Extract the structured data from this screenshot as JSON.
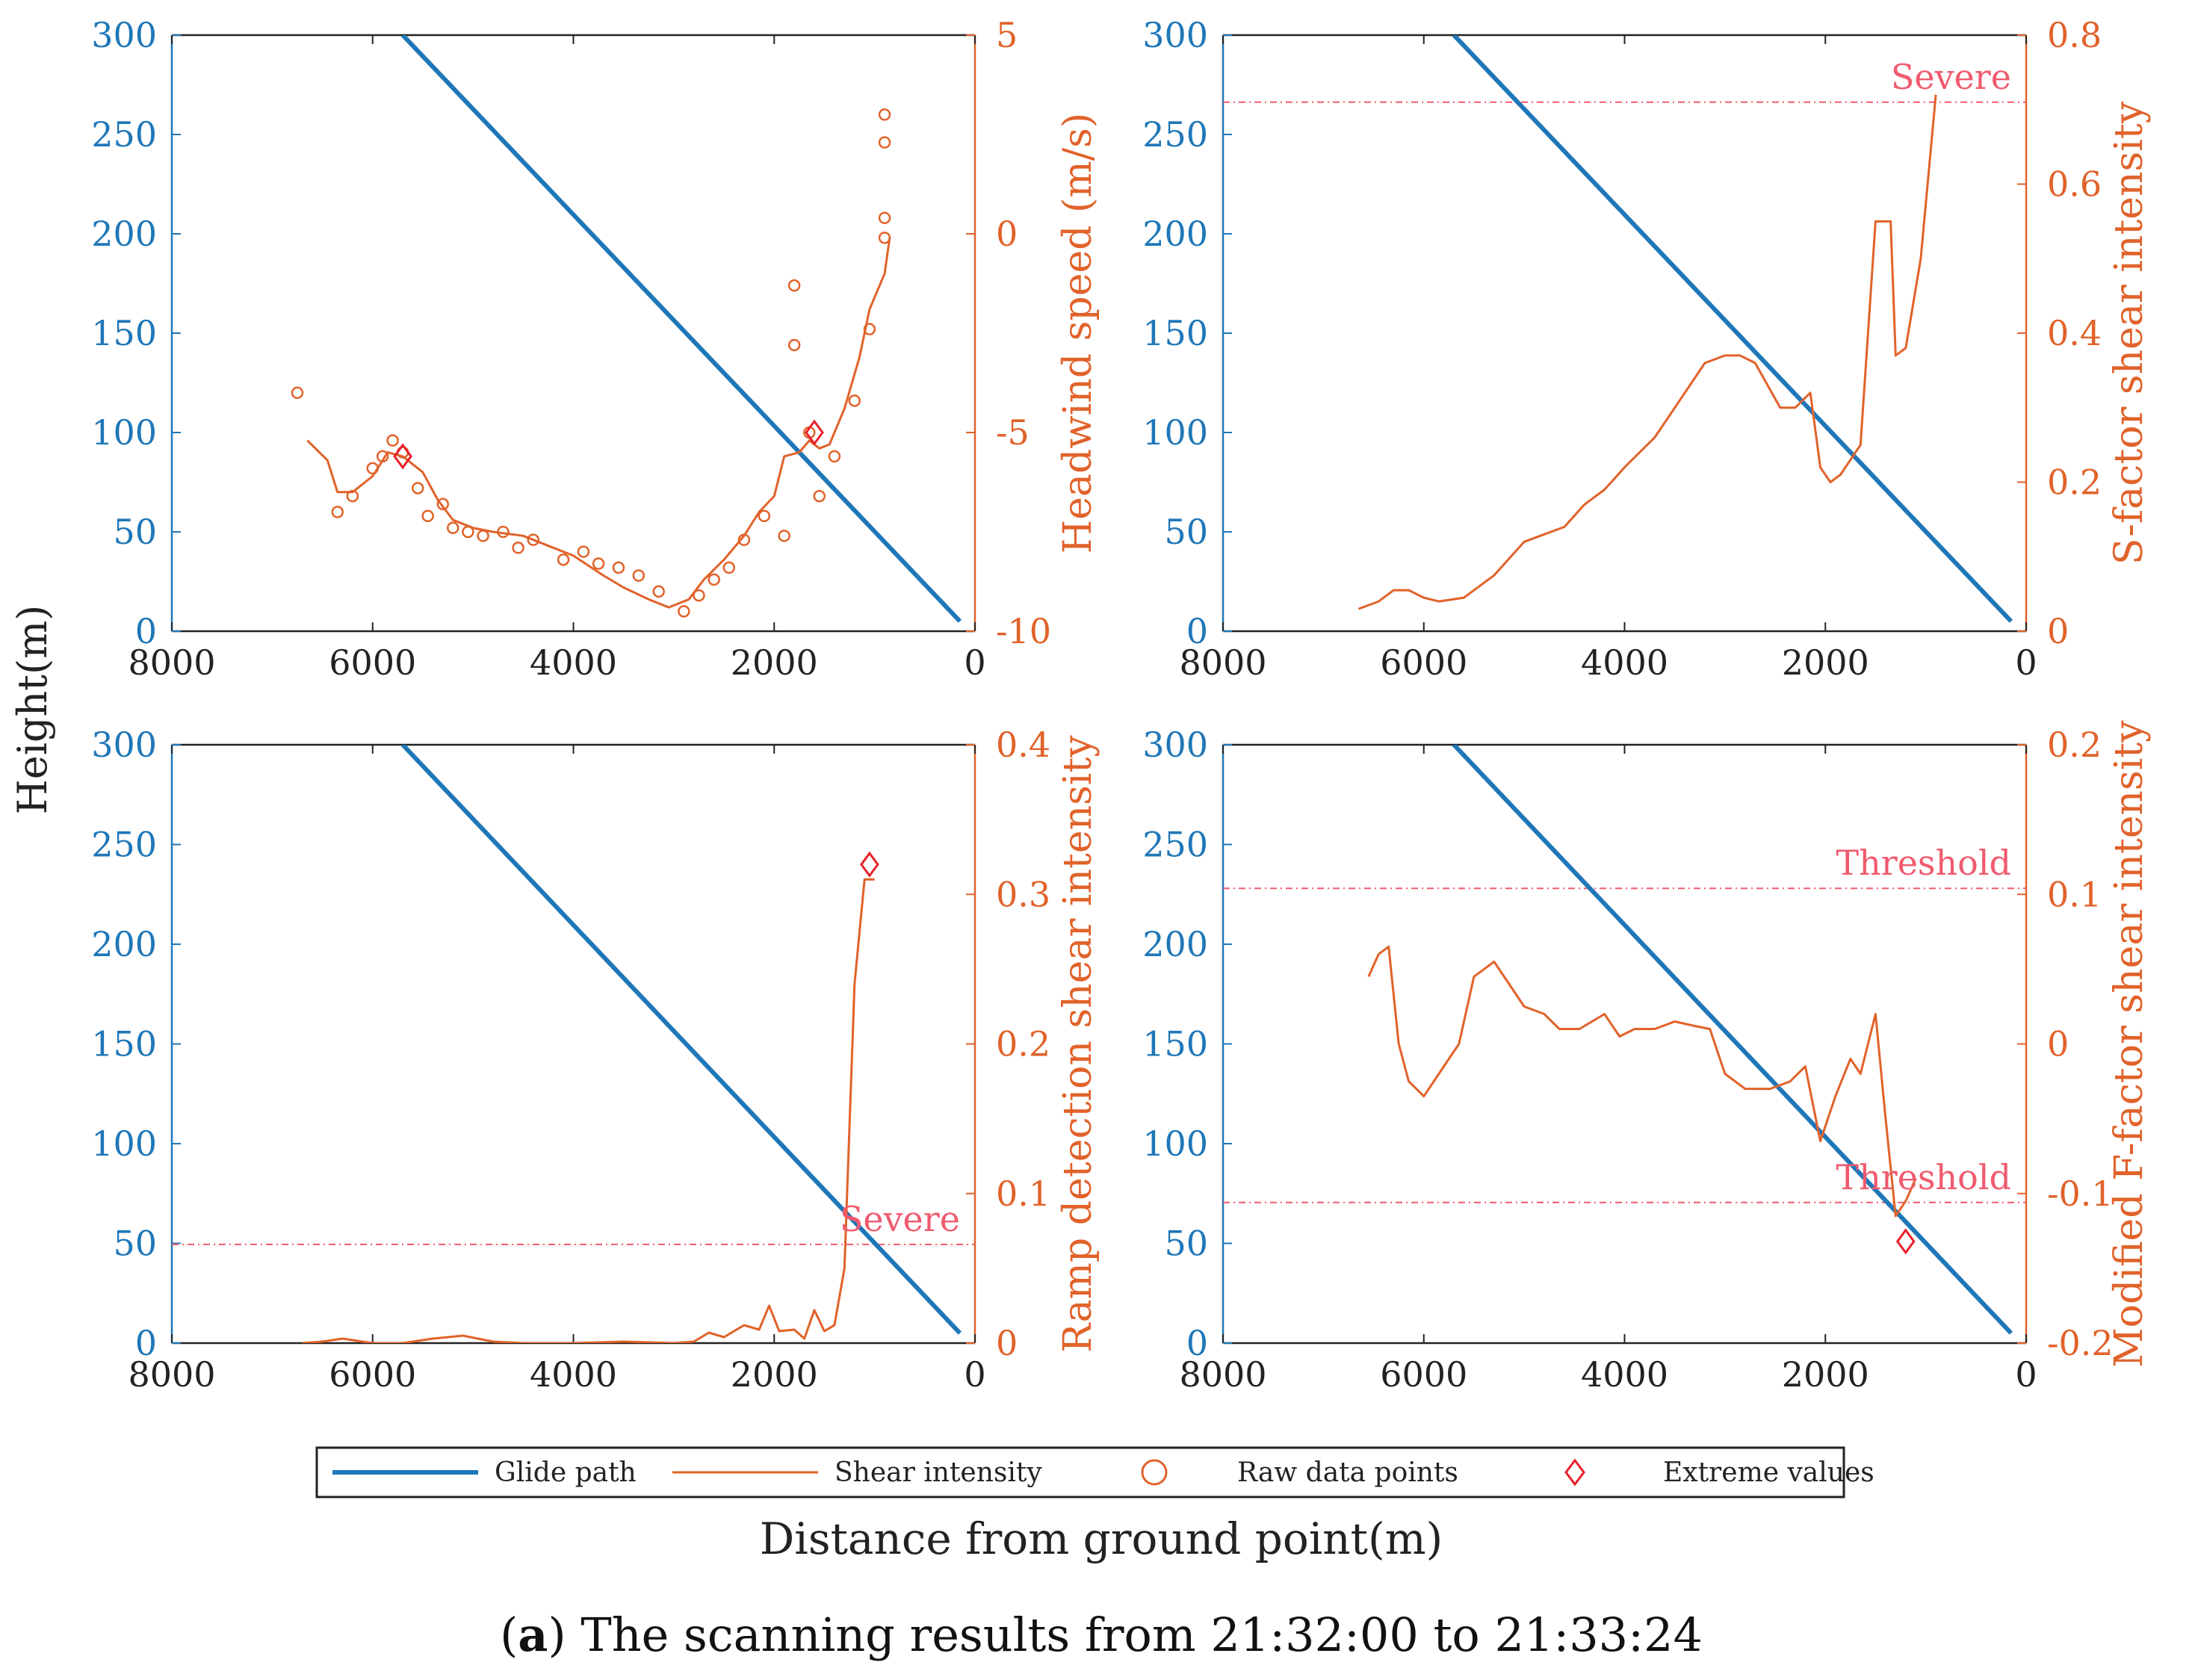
{
  "caption": {
    "prefix": "(",
    "bold": "a",
    "suffix": ") The scanning results from 21:32:00 to 21:33:24"
  },
  "shared_ylabel": "Height(m)",
  "shared_xlabel": "Distance from ground point(m)",
  "legend": {
    "glide_path": "Glide path",
    "shear_intensity": "Shear intensity",
    "raw_points": "Raw data points",
    "extreme_values": "Extreme values"
  },
  "colors": {
    "glide": "#1f77b8",
    "shear": "#e1622a",
    "extreme": "#e8202a",
    "threshold": "#f05a6e"
  },
  "chart_data": [
    {
      "type": "line",
      "ylabel_right": "Headwind speed (m/s)",
      "x_ticks": [
        "8000",
        "6000",
        "4000",
        "2000",
        "0"
      ],
      "xlim": [
        8000,
        0
      ],
      "y_left_ticks": [
        "300",
        "250",
        "200",
        "150",
        "100",
        "50",
        "0"
      ],
      "ylim_left": [
        0,
        300
      ],
      "y_right_ticks": [
        "5",
        "0",
        "-5",
        "-10"
      ],
      "ylim_right": [
        -10,
        5
      ],
      "glide_path": [
        [
          5700,
          300
        ],
        [
          150,
          5
        ]
      ],
      "shear_line": [
        [
          6650,
          -5.2
        ],
        [
          6450,
          -5.7
        ],
        [
          6350,
          -6.5
        ],
        [
          6200,
          -6.5
        ],
        [
          6000,
          -6.1
        ],
        [
          5850,
          -5.5
        ],
        [
          5700,
          -5.6
        ],
        [
          5500,
          -6.0
        ],
        [
          5350,
          -6.7
        ],
        [
          5200,
          -7.2
        ],
        [
          5000,
          -7.4
        ],
        [
          4800,
          -7.5
        ],
        [
          4500,
          -7.6
        ],
        [
          4200,
          -7.9
        ],
        [
          4000,
          -8.1
        ],
        [
          3700,
          -8.6
        ],
        [
          3500,
          -8.9
        ],
        [
          3250,
          -9.2
        ],
        [
          3050,
          -9.4
        ],
        [
          2850,
          -9.2
        ],
        [
          2700,
          -8.7
        ],
        [
          2500,
          -8.2
        ],
        [
          2300,
          -7.6
        ],
        [
          2150,
          -7.0
        ],
        [
          2000,
          -6.6
        ],
        [
          1900,
          -5.6
        ],
        [
          1750,
          -5.5
        ],
        [
          1650,
          -5.2
        ],
        [
          1550,
          -5.4
        ],
        [
          1450,
          -5.3
        ],
        [
          1300,
          -4.4
        ],
        [
          1150,
          -3.1
        ],
        [
          1050,
          -1.9
        ],
        [
          900,
          -1.0
        ],
        [
          850,
          -0.1
        ]
      ],
      "raw_points": [
        [
          6750,
          -4.0
        ],
        [
          5800,
          -5.2
        ],
        [
          5700,
          -5.5
        ],
        [
          6000,
          -5.9
        ],
        [
          6200,
          -6.6
        ],
        [
          6350,
          -7.0
        ],
        [
          5900,
          -5.6
        ],
        [
          5550,
          -6.4
        ],
        [
          5450,
          -7.1
        ],
        [
          5300,
          -6.8
        ],
        [
          5200,
          -7.4
        ],
        [
          5050,
          -7.5
        ],
        [
          4900,
          -7.6
        ],
        [
          4700,
          -7.5
        ],
        [
          4550,
          -7.9
        ],
        [
          4400,
          -7.7
        ],
        [
          4100,
          -8.2
        ],
        [
          3900,
          -8.0
        ],
        [
          3750,
          -8.3
        ],
        [
          3550,
          -8.4
        ],
        [
          3350,
          -8.6
        ],
        [
          3150,
          -9.0
        ],
        [
          2900,
          -9.5
        ],
        [
          2750,
          -9.1
        ],
        [
          2600,
          -8.7
        ],
        [
          2450,
          -8.4
        ],
        [
          2300,
          -7.7
        ],
        [
          2100,
          -7.1
        ],
        [
          1900,
          -7.6
        ],
        [
          1800,
          -2.8
        ],
        [
          1800,
          -1.3
        ],
        [
          1650,
          -5.0
        ],
        [
          1550,
          -6.6
        ],
        [
          1400,
          -5.6
        ],
        [
          1200,
          -4.2
        ],
        [
          1050,
          -2.4
        ],
        [
          900,
          -0.1
        ],
        [
          900,
          0.4
        ],
        [
          900,
          2.3
        ],
        [
          900,
          3.0
        ]
      ],
      "extreme_points": [
        [
          5700,
          -5.6
        ],
        [
          1600,
          -5.0
        ]
      ]
    },
    {
      "type": "line",
      "ylabel_right": "S-factor shear intensity",
      "x_ticks": [
        "8000",
        "6000",
        "4000",
        "2000",
        "0"
      ],
      "xlim": [
        8000,
        0
      ],
      "y_left_ticks": [
        "300",
        "250",
        "200",
        "150",
        "100",
        "50",
        "0"
      ],
      "ylim_left": [
        0,
        300
      ],
      "y_right_ticks": [
        "0.8",
        "0.6",
        "0.4",
        "0.2",
        "0"
      ],
      "ylim_right": [
        0,
        0.8
      ],
      "glide_path": [
        [
          5700,
          300
        ],
        [
          150,
          5
        ]
      ],
      "threshold": {
        "value": 0.71,
        "label": "Severe"
      },
      "shear_line": [
        [
          6650,
          0.03
        ],
        [
          6450,
          0.04
        ],
        [
          6300,
          0.055
        ],
        [
          6150,
          0.055
        ],
        [
          6000,
          0.045
        ],
        [
          5850,
          0.04
        ],
        [
          5600,
          0.045
        ],
        [
          5300,
          0.075
        ],
        [
          5000,
          0.12
        ],
        [
          4800,
          0.13
        ],
        [
          4600,
          0.14
        ],
        [
          4400,
          0.17
        ],
        [
          4200,
          0.19
        ],
        [
          4000,
          0.22
        ],
        [
          3700,
          0.26
        ],
        [
          3500,
          0.3
        ],
        [
          3200,
          0.36
        ],
        [
          3000,
          0.37
        ],
        [
          2850,
          0.37
        ],
        [
          2700,
          0.36
        ],
        [
          2450,
          0.3
        ],
        [
          2300,
          0.3
        ],
        [
          2150,
          0.32
        ],
        [
          2050,
          0.22
        ],
        [
          1950,
          0.2
        ],
        [
          1850,
          0.21
        ],
        [
          1650,
          0.25
        ],
        [
          1500,
          0.55
        ],
        [
          1350,
          0.55
        ],
        [
          1300,
          0.37
        ],
        [
          1200,
          0.38
        ],
        [
          1050,
          0.5
        ],
        [
          900,
          0.72
        ]
      ]
    },
    {
      "type": "line",
      "ylabel_right": "Ramp detection shear intensity",
      "x_ticks": [
        "8000",
        "6000",
        "4000",
        "2000",
        "0"
      ],
      "xlim": [
        8000,
        0
      ],
      "y_left_ticks": [
        "300",
        "250",
        "200",
        "150",
        "100",
        "50",
        "0"
      ],
      "ylim_left": [
        0,
        300
      ],
      "y_right_ticks": [
        "0.4",
        "0.3",
        "0.2",
        "0.1",
        "0"
      ],
      "ylim_right": [
        0,
        0.4
      ],
      "glide_path": [
        [
          5700,
          300
        ],
        [
          150,
          5
        ]
      ],
      "threshold": {
        "value": 0.066,
        "label": "Severe"
      },
      "shear_line": [
        [
          6700,
          0.0
        ],
        [
          6500,
          0.001
        ],
        [
          6300,
          0.003
        ],
        [
          6000,
          0.0
        ],
        [
          5700,
          0.0
        ],
        [
          5400,
          0.003
        ],
        [
          5100,
          0.005
        ],
        [
          4800,
          0.001
        ],
        [
          4500,
          0.0
        ],
        [
          4000,
          0.0
        ],
        [
          3500,
          0.001
        ],
        [
          3000,
          0.0
        ],
        [
          2800,
          0.001
        ],
        [
          2650,
          0.007
        ],
        [
          2500,
          0.004
        ],
        [
          2300,
          0.012
        ],
        [
          2150,
          0.009
        ],
        [
          2050,
          0.025
        ],
        [
          1950,
          0.008
        ],
        [
          1800,
          0.009
        ],
        [
          1700,
          0.003
        ],
        [
          1600,
          0.022
        ],
        [
          1500,
          0.008
        ],
        [
          1400,
          0.012
        ],
        [
          1300,
          0.05
        ],
        [
          1200,
          0.24
        ],
        [
          1100,
          0.31
        ],
        [
          1000,
          0.31
        ]
      ],
      "extreme_points": [
        [
          1050,
          0.32
        ]
      ]
    },
    {
      "type": "line",
      "ylabel_right": "Modified F-factor shear intensity",
      "x_ticks": [
        "8000",
        "6000",
        "4000",
        "2000",
        "0"
      ],
      "xlim": [
        8000,
        0
      ],
      "y_left_ticks": [
        "300",
        "250",
        "200",
        "150",
        "100",
        "50",
        "0"
      ],
      "ylim_left": [
        0,
        300
      ],
      "y_right_ticks": [
        "0.2",
        "0.1",
        "0",
        "-0.1",
        "-0.2"
      ],
      "ylim_right": [
        -0.2,
        0.2
      ],
      "glide_path": [
        [
          5700,
          300
        ],
        [
          150,
          5
        ]
      ],
      "thresholds": [
        {
          "value": 0.104,
          "label": "Threshold"
        },
        {
          "value": -0.106,
          "label": "Threshold"
        }
      ],
      "shear_line": [
        [
          6550,
          0.045
        ],
        [
          6450,
          0.06
        ],
        [
          6350,
          0.065
        ],
        [
          6250,
          0.0
        ],
        [
          6150,
          -0.025
        ],
        [
          6000,
          -0.035
        ],
        [
          5850,
          -0.02
        ],
        [
          5650,
          0.0
        ],
        [
          5500,
          0.045
        ],
        [
          5300,
          0.055
        ],
        [
          5150,
          0.04
        ],
        [
          5000,
          0.025
        ],
        [
          4800,
          0.02
        ],
        [
          4650,
          0.01
        ],
        [
          4450,
          0.01
        ],
        [
          4200,
          0.02
        ],
        [
          4050,
          0.005
        ],
        [
          3900,
          0.01
        ],
        [
          3700,
          0.01
        ],
        [
          3500,
          0.015
        ],
        [
          3300,
          0.012
        ],
        [
          3150,
          0.01
        ],
        [
          3000,
          -0.02
        ],
        [
          2800,
          -0.03
        ],
        [
          2550,
          -0.03
        ],
        [
          2350,
          -0.025
        ],
        [
          2200,
          -0.015
        ],
        [
          2050,
          -0.065
        ],
        [
          1900,
          -0.035
        ],
        [
          1750,
          -0.01
        ],
        [
          1650,
          -0.02
        ],
        [
          1500,
          0.02
        ],
        [
          1400,
          -0.05
        ],
        [
          1300,
          -0.115
        ],
        [
          1200,
          -0.105
        ],
        [
          1100,
          -0.09
        ]
      ],
      "extreme_points": [
        [
          1200,
          -0.132
        ]
      ]
    }
  ]
}
